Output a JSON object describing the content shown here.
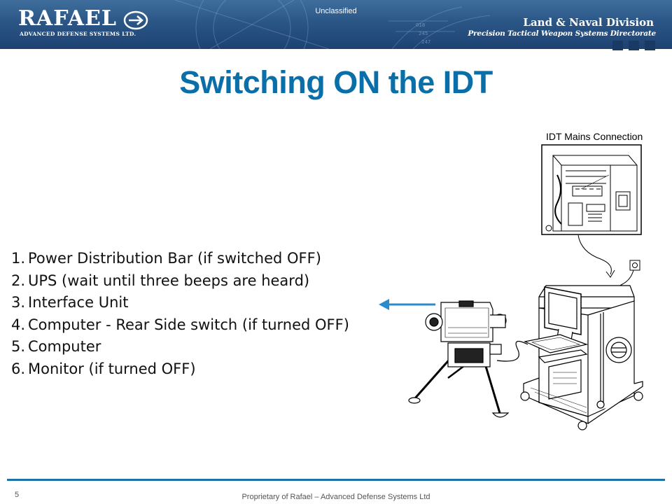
{
  "header": {
    "logo": {
      "wordmark": "RAFAEL",
      "tagline": "ADVANCED DEFENSE SYSTEMS LTD."
    },
    "classification": "Unclassified",
    "division": "Land & Naval Division",
    "directorate": "Precision Tactical Weapon Systems Directorate"
  },
  "slide": {
    "title": "Switching ON the IDT",
    "steps": [
      {
        "number": "1.",
        "text": "Power Distribution Bar (if switched OFF)"
      },
      {
        "number": "2.",
        "text": "UPS (wait until three beeps are heard)"
      },
      {
        "number": "3.",
        "text": "Interface Unit"
      },
      {
        "number": "4.",
        "text": "Computer - Rear Side switch (if turned OFF)"
      },
      {
        "number": "5.",
        "text": "Computer"
      },
      {
        "number": "6.",
        "text": "Monitor (if turned OFF)"
      }
    ],
    "figure_caption": "IDT Mains Connection"
  },
  "footer": {
    "page_number": "5",
    "text": "Proprietary of Rafael – Advanced Defense Systems Ltd"
  },
  "colors": {
    "title": "#0a6fa8",
    "banner": "#2a5686",
    "footer_rule": "#1f72a8",
    "arrow": "#2a8ccc"
  }
}
